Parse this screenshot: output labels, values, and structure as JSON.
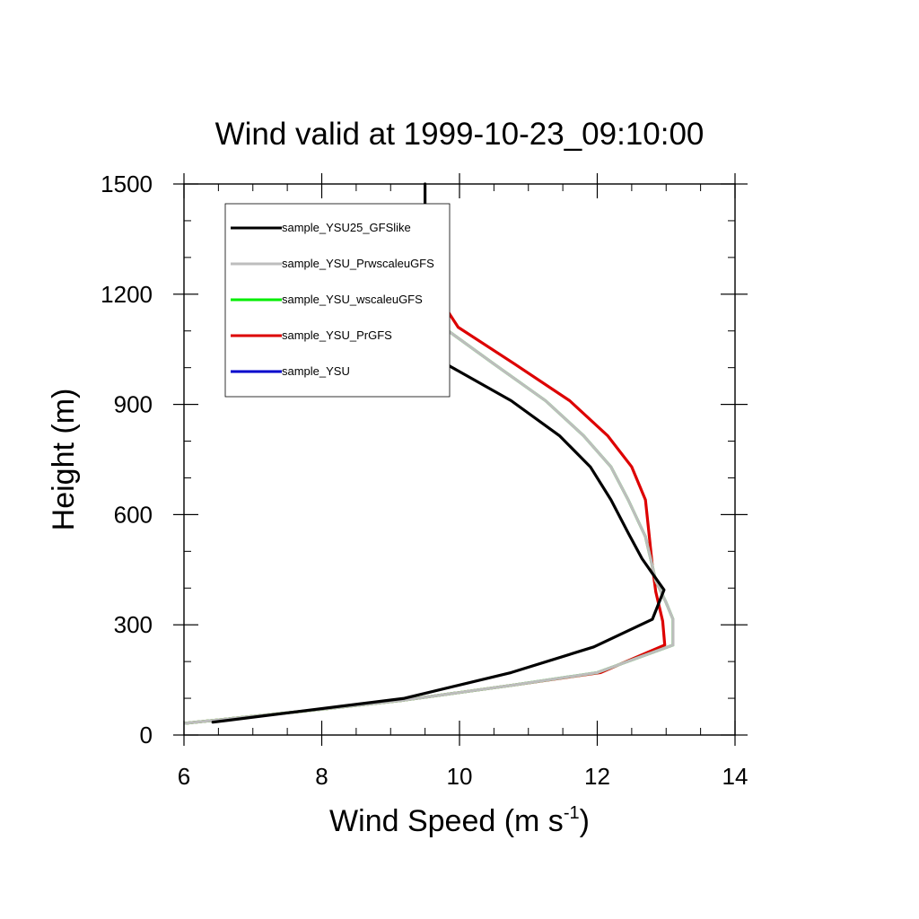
{
  "chart_data": {
    "type": "line",
    "title": "Wind valid at 1999-10-23_09:10:00",
    "xlabel": "Wind Speed (m s",
    "xlabel_sup": "-1",
    "xlabel_end": ")",
    "ylabel": "Height (m)",
    "xlim": [
      6,
      14
    ],
    "ylim": [
      0,
      1500
    ],
    "xticks": [
      6,
      8,
      10,
      12,
      14
    ],
    "yticks": [
      0,
      300,
      600,
      900,
      1200,
      1500
    ],
    "grid": false,
    "legend_position": "top-left",
    "series": [
      {
        "name": "sample_YSU25_GFSlike",
        "color": "#000000",
        "points": [
          [
            6.42,
            35
          ],
          [
            9.2,
            100
          ],
          [
            10.75,
            170
          ],
          [
            11.95,
            240
          ],
          [
            12.8,
            315
          ],
          [
            12.97,
            395
          ],
          [
            12.8,
            440
          ],
          [
            12.65,
            480
          ],
          [
            12.45,
            550
          ],
          [
            12.2,
            640
          ],
          [
            11.9,
            730
          ],
          [
            11.45,
            815
          ],
          [
            10.75,
            910
          ],
          [
            9.85,
            1005
          ],
          [
            9.55,
            1110
          ],
          [
            9.52,
            1200
          ],
          [
            9.5,
            1300
          ],
          [
            9.5,
            1400
          ],
          [
            9.5,
            1500
          ]
        ]
      },
      {
        "name": "sample_YSU_PrwscaleuGFS",
        "color": "#bdbdbd",
        "points": [
          [
            6.02,
            32
          ],
          [
            8.0,
            70
          ],
          [
            9.2,
            95
          ],
          [
            10.75,
            135
          ],
          [
            12.0,
            170
          ],
          [
            13.1,
            245
          ],
          [
            13.1,
            315
          ],
          [
            13.0,
            360
          ],
          [
            12.85,
            420
          ],
          [
            12.7,
            540
          ],
          [
            12.45,
            640
          ],
          [
            12.2,
            730
          ],
          [
            11.8,
            815
          ],
          [
            11.25,
            910
          ],
          [
            10.5,
            1010
          ],
          [
            9.8,
            1105
          ],
          [
            9.55,
            1200
          ],
          [
            9.52,
            1300
          ]
        ]
      },
      {
        "name": "sample_YSU_wscaleuGFS",
        "color": "#00ee00",
        "points": [
          [
            6.02,
            32
          ],
          [
            8.0,
            70
          ],
          [
            9.2,
            95
          ],
          [
            10.75,
            135
          ],
          [
            12.0,
            170
          ],
          [
            13.1,
            245
          ],
          [
            13.1,
            315
          ],
          [
            13.0,
            360
          ],
          [
            12.85,
            420
          ],
          [
            12.7,
            540
          ],
          [
            12.45,
            640
          ],
          [
            12.2,
            730
          ],
          [
            11.8,
            815
          ],
          [
            11.25,
            910
          ],
          [
            10.5,
            1010
          ],
          [
            9.8,
            1105
          ],
          [
            9.55,
            1200
          ],
          [
            9.52,
            1300
          ]
        ]
      },
      {
        "name": "sample_YSU_PrGFS",
        "color": "#dd0000",
        "points": [
          [
            6.02,
            32
          ],
          [
            8.0,
            70
          ],
          [
            9.2,
            95
          ],
          [
            10.75,
            135
          ],
          [
            12.05,
            170
          ],
          [
            12.98,
            245
          ],
          [
            12.95,
            310
          ],
          [
            12.85,
            390
          ],
          [
            12.8,
            460
          ],
          [
            12.75,
            550
          ],
          [
            12.7,
            640
          ],
          [
            12.5,
            730
          ],
          [
            12.15,
            815
          ],
          [
            11.6,
            910
          ],
          [
            10.8,
            1010
          ],
          [
            9.98,
            1110
          ],
          [
            9.6,
            1220
          ],
          [
            9.55,
            1280
          ]
        ]
      },
      {
        "name": "sample_YSU",
        "color": "#0000cc",
        "points": []
      }
    ]
  }
}
